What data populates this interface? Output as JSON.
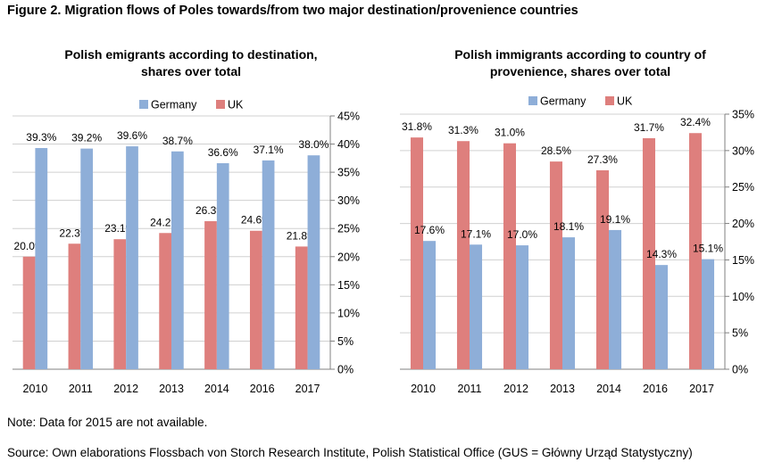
{
  "figure_title": "Figure 2. Migration flows of Poles towards/from two major destination/provenience countries",
  "note": "Note: Data for 2015 are not available.",
  "source": "Source: Own elaborations Flossbach von Storch Research Institute, Polish Statistical Office (GUS = Główny Urząd Statystyczny)",
  "colors": {
    "germany": "#8eaed8",
    "uk": "#de7f7d",
    "grid": "#d0d0d0"
  },
  "chart_data": [
    {
      "type": "bar",
      "title_line1": "Polish emigrants according to destination,",
      "title_line2": "shares over total",
      "categories": [
        "2010",
        "2011",
        "2012",
        "2013",
        "2014",
        "2016",
        "2017"
      ],
      "series": [
        {
          "name": "Germany",
          "values": [
            39.3,
            39.2,
            39.6,
            38.7,
            36.6,
            37.1,
            38.0
          ],
          "labels": [
            "39.3%",
            "39.2%",
            "39.6%",
            "38.7%",
            "36.6%",
            "37.1%",
            "38.0%"
          ]
        },
        {
          "name": "UK",
          "values": [
            20.0,
            22.3,
            23.1,
            24.2,
            26.3,
            24.6,
            21.8
          ],
          "labels": [
            "20.0%",
            "22.3%",
            "23.1%",
            "24.2%",
            "26.3%",
            "24.6%",
            "21.8%"
          ]
        }
      ],
      "series_order": [
        "UK",
        "Germany"
      ],
      "ylim": [
        0,
        45
      ],
      "yticks": [
        "0%",
        "5%",
        "10%",
        "15%",
        "20%",
        "25%",
        "30%",
        "35%",
        "40%",
        "45%"
      ],
      "axis_side": "right",
      "grid": true,
      "legend": "top"
    },
    {
      "type": "bar",
      "title_line1": "Polish immigrants according to country of",
      "title_line2": "provenience, shares over total",
      "categories": [
        "2010",
        "2011",
        "2012",
        "2013",
        "2014",
        "2016",
        "2017"
      ],
      "series": [
        {
          "name": "Germany",
          "values": [
            17.6,
            17.1,
            17.0,
            18.1,
            19.1,
            14.3,
            15.1
          ],
          "labels": [
            "17.6%",
            "17.1%",
            "17.0%",
            "18.1%",
            "19.1%",
            "14.3%",
            "15.1%"
          ]
        },
        {
          "name": "UK",
          "values": [
            31.8,
            31.3,
            31.0,
            28.5,
            27.3,
            31.7,
            32.4
          ],
          "labels": [
            "31.8%",
            "31.3%",
            "31.0%",
            "28.5%",
            "27.3%",
            "31.7%",
            "32.4%"
          ]
        }
      ],
      "series_order": [
        "UK",
        "Germany"
      ],
      "ylim": [
        0,
        35
      ],
      "yticks": [
        "0%",
        "5%",
        "10%",
        "15%",
        "20%",
        "25%",
        "30%",
        "35%"
      ],
      "axis_side": "right",
      "grid": true,
      "legend": "top"
    }
  ]
}
